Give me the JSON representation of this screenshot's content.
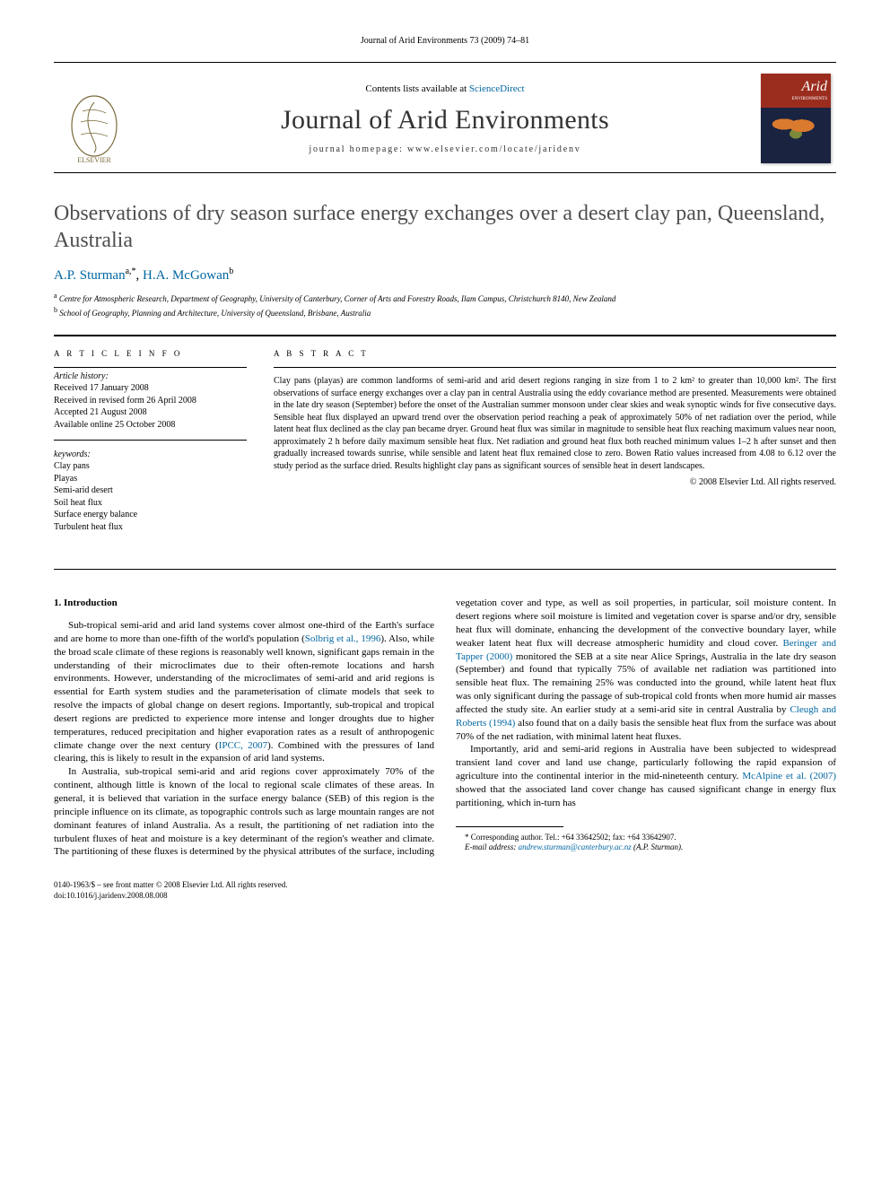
{
  "running_header": "Journal of Arid Environments 73 (2009) 74–81",
  "masthead": {
    "contents_pre": "Contents lists available at ",
    "contents_link": "ScienceDirect",
    "journal_name": "Journal of Arid Environments",
    "homepage": "journal homepage: www.elsevier.com/locate/jaridenv",
    "cover_title": "Arid",
    "cover_sub": "ENVIRONMENTS"
  },
  "title": "Observations of dry season surface energy exchanges over a desert clay pan, Queensland, Australia",
  "authors": [
    {
      "name": "A.P. Sturman",
      "sup": "a,*",
      "link": true
    },
    {
      "name": "H.A. McGowan",
      "sup": "b",
      "link": true
    }
  ],
  "affiliations": [
    {
      "sup": "a",
      "text": "Centre for Atmospheric Research, Department of Geography, University of Canterbury, Corner of Arts and Forestry Roads, Ilam Campus, Christchurch 8140, New Zealand"
    },
    {
      "sup": "b",
      "text": "School of Geography, Planning and Architecture, University of Queensland, Brisbane, Australia"
    }
  ],
  "article_info": {
    "heading": "A R T I C L E   I N F O",
    "history_heading": "Article history:",
    "history": [
      "Received 17 January 2008",
      "Received in revised form 26 April 2008",
      "Accepted 21 August 2008",
      "Available online 25 October 2008"
    ],
    "keywords_heading": "keywords:",
    "keywords": [
      "Clay pans",
      "Playas",
      "Semi-arid desert",
      "Soil heat flux",
      "Surface energy balance",
      "Turbulent heat flux"
    ]
  },
  "abstract": {
    "heading": "A B S T R A C T",
    "text": "Clay pans (playas) are common landforms of semi-arid and arid desert regions ranging in size from 1 to 2 km² to greater than 10,000 km². The first observations of surface energy exchanges over a clay pan in central Australia using the eddy covariance method are presented. Measurements were obtained in the late dry season (September) before the onset of the Australian summer monsoon under clear skies and weak synoptic winds for five consecutive days. Sensible heat flux displayed an upward trend over the observation period reaching a peak of approximately 50% of net radiation over the period, while latent heat flux declined as the clay pan became dryer. Ground heat flux was similar in magnitude to sensible heat flux reaching maximum values near noon, approximately 2 h before daily maximum sensible heat flux. Net radiation and ground heat flux both reached minimum values 1–2 h after sunset and then gradually increased towards sunrise, while sensible and latent heat flux remained close to zero. Bowen Ratio values increased from 4.08 to 6.12 over the study period as the surface dried. Results highlight clay pans as significant sources of sensible heat in desert landscapes.",
    "copyright": "© 2008 Elsevier Ltd. All rights reserved."
  },
  "body": {
    "section_heading": "1.  Introduction",
    "paragraphs": [
      "Sub-tropical semi-arid and arid land systems cover almost one-third of the Earth's surface and are home to more than one-fifth of the world's population (<a>Solbrig et al., 1996</a>). Also, while the broad scale climate of these regions is reasonably well known, significant gaps remain in the understanding of their microclimates due to their often-remote locations and harsh environments. However, understanding of the microclimates of semi-arid and arid regions is essential for Earth system studies and the parameterisation of climate models that seek to resolve the impacts of global change on desert regions. Importantly, sub-tropical and tropical desert regions are predicted to experience more intense and longer droughts due to higher temperatures, reduced precipitation and higher evaporation rates as a result of anthropogenic climate change over the next century (<a>IPCC, 2007</a>). Combined with the pressures of land clearing, this is likely to result in the expansion of arid land systems.",
      "In Australia, sub-tropical semi-arid and arid regions cover approximately 70% of the continent, although little is known of the local to regional scale climates of these areas. In general, it is believed that variation in the surface energy balance (SEB) of this region is the principle influence on its climate, as topographic controls such as large mountain ranges are not dominant features of inland Australia. As a result, the partitioning of net radiation into the turbulent fluxes of heat and moisture is a key determinant of the region's weather and climate. The partitioning of these fluxes is determined by the physical attributes of the surface, including vegetation cover and type, as well as soil properties, in particular, soil moisture content. In desert regions where soil moisture is limited and vegetation cover is sparse and/or dry, sensible heat flux will dominate, enhancing the development of the convective boundary layer, while weaker latent heat flux will decrease atmospheric humidity and cloud cover. <a>Beringer and Tapper (2000)</a> monitored the SEB at a site near Alice Springs, Australia in the late dry season (September) and found that typically 75% of available net radiation was partitioned into sensible heat flux. The remaining 25% was conducted into the ground, while latent heat flux was only significant during the passage of sub-tropical cold fronts when more humid air masses affected the study site. An earlier study at a semi-arid site in central Australia by <a>Cleugh and Roberts (1994)</a> also found that on a daily basis the sensible heat flux from the surface was about 70% of the net radiation, with minimal latent heat fluxes.",
      "Importantly, arid and semi-arid regions in Australia have been subjected to widespread transient land cover and land use change, particularly following the rapid expansion of agriculture into the continental interior in the mid-nineteenth century. <a>McAlpine et al. (2007)</a> showed that the associated land cover change has caused significant change in energy flux partitioning, which in-turn has"
    ]
  },
  "footnotes": {
    "corresponding": "* Corresponding author. Tel.: +64 33642502; fax: +64 33642907.",
    "email_label": "E-mail address:",
    "email": "andrew.sturman@canterbury.ac.nz",
    "email_suffix": "(A.P. Sturman)."
  },
  "footer": {
    "line1": "0140-1963/$ – see front matter © 2008 Elsevier Ltd. All rights reserved.",
    "line2": "doi:10.1016/j.jaridenv.2008.08.008"
  },
  "colors": {
    "link": "#0066a1",
    "title_gray": "#4f4f4f",
    "cover_top": "#9b2d1f",
    "cover_bottom": "#1a2340"
  }
}
